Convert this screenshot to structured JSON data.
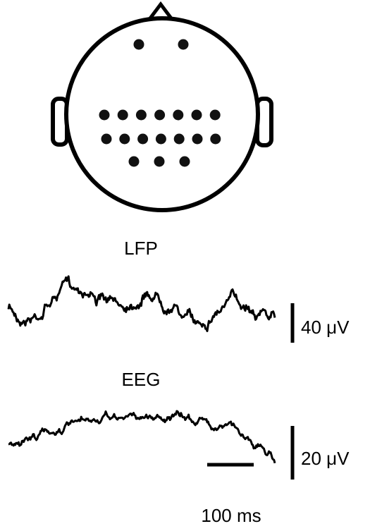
{
  "traces": {
    "lfp": {
      "label": "LFP",
      "scale": "40 μV"
    },
    "eeg": {
      "label": "EEG",
      "scale": "20 μV"
    }
  },
  "time_scale": "100 ms"
}
